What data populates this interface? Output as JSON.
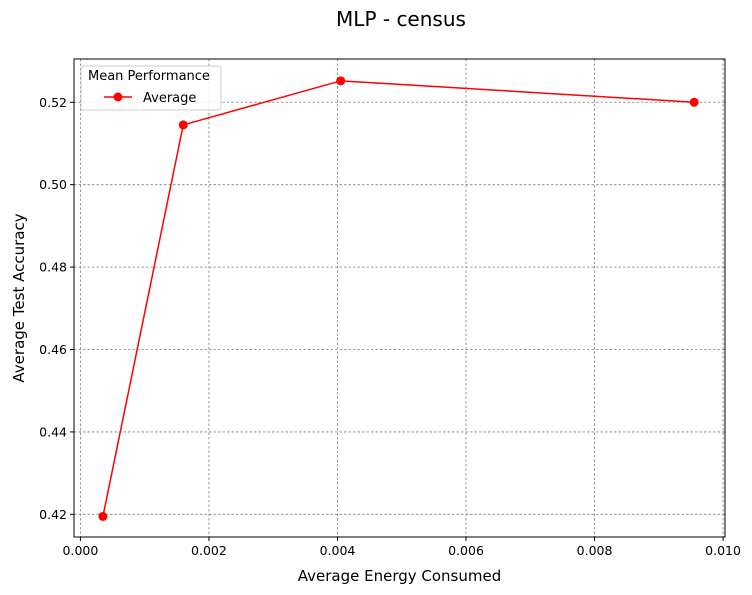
{
  "chart_data": {
    "type": "line",
    "title": "MLP - census",
    "xlabel": "Average Energy Consumed",
    "ylabel": "Average Test Accuracy",
    "xlim": [
      -0.0001,
      0.01003
    ],
    "ylim": [
      0.4145,
      0.5305
    ],
    "xticks": [
      0.0,
      0.002,
      0.004,
      0.006,
      0.008,
      0.01
    ],
    "xtick_labels": [
      "0.000",
      "0.002",
      "0.004",
      "0.006",
      "0.008",
      "0.010"
    ],
    "yticks": [
      0.42,
      0.44,
      0.46,
      0.48,
      0.5,
      0.52
    ],
    "ytick_labels": [
      "0.42",
      "0.44",
      "0.46",
      "0.48",
      "0.50",
      "0.52"
    ],
    "grid": true,
    "legend": {
      "title": "Mean Performance",
      "placement": "top-left"
    },
    "series": [
      {
        "name": "Average",
        "color": "#ff0000",
        "marker": "circle",
        "x": [
          0.00035,
          0.0016,
          0.00405,
          0.00955
        ],
        "y": [
          0.4195,
          0.5145,
          0.5252,
          0.52
        ]
      }
    ]
  }
}
